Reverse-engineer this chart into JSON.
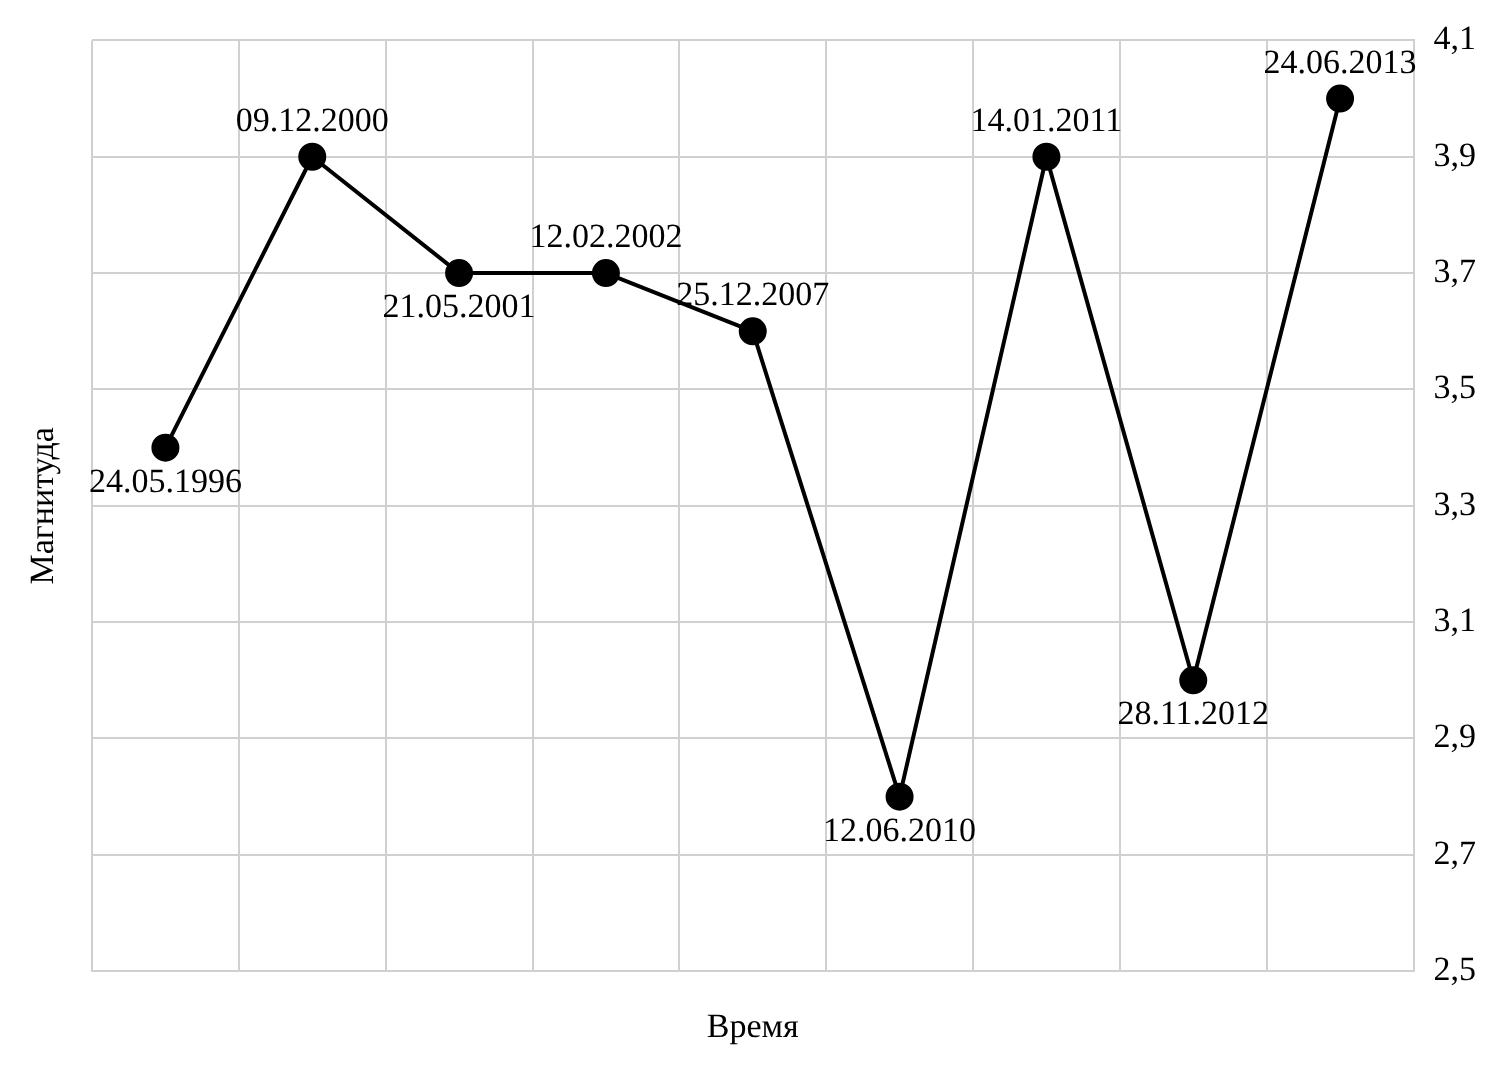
{
  "chart_data": {
    "type": "line",
    "xlabel": "Время",
    "ylabel": "Магнитуда",
    "categories": [
      null,
      null,
      null,
      null,
      null,
      null,
      null,
      null,
      null
    ],
    "values": [
      3.4,
      3.9,
      3.7,
      3.7,
      3.6,
      2.8,
      3.9,
      3.0,
      4.0
    ],
    "color": "#000000",
    "marker": "circle",
    "line_style": "solid",
    "grid": true,
    "legend": false,
    "tick_labels": "y",
    "ylim": [
      2.5,
      4.1
    ],
    "yticks": [
      {
        "value": 2.5,
        "label": "2,5"
      },
      {
        "value": 2.7,
        "label": "2,7"
      },
      {
        "value": 2.9,
        "label": "2,9"
      },
      {
        "value": 3.1,
        "label": "3,1"
      },
      {
        "value": 3.3,
        "label": "3,3"
      },
      {
        "value": 3.5,
        "label": "3,5"
      },
      {
        "value": 3.7,
        "label": "3,7"
      },
      {
        "value": 3.9,
        "label": "3,9"
      },
      {
        "value": 4.1,
        "label": "4,1"
      }
    ],
    "annotations": [
      "24.05.1996",
      "09.12.2000",
      "21.05.2001",
      "12.02.2002",
      "25.12.2007",
      "12.06.2010",
      "14.01.2011",
      "28.11.2012",
      "24.06.2013"
    ]
  }
}
